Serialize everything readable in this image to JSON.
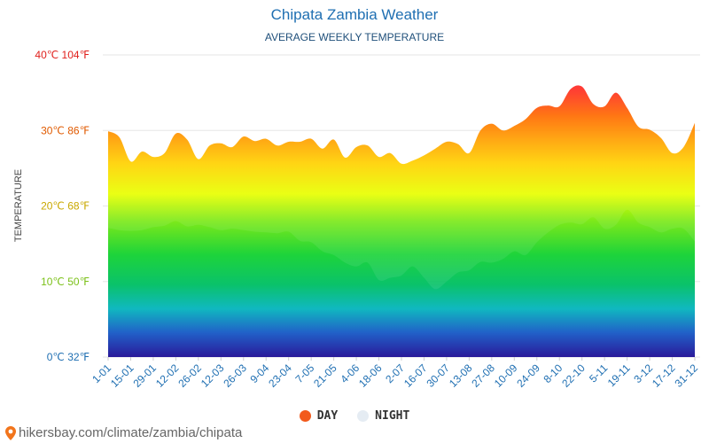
{
  "header": {
    "title": "Chipata Zambia Weather",
    "subtitle": "AVERAGE WEEKLY TEMPERATURE"
  },
  "legend": [
    {
      "label": "DAY",
      "color": "#f25a1c"
    },
    {
      "label": "NIGHT",
      "color": "#e5ecf3"
    }
  ],
  "credit": "hikersbay.com/climate/zambia/chipata",
  "chart_data": {
    "type": "area",
    "ylabel": "TEMPERATURE",
    "ylim": [
      0,
      40
    ],
    "yticks": [
      {
        "value": 0,
        "label": "0℃ 32℉",
        "color": "#1f6fb2"
      },
      {
        "value": 10,
        "label": "10℃ 50℉",
        "color": "#7cc11a"
      },
      {
        "value": 20,
        "label": "20℃ 68℉",
        "color": "#c9a800"
      },
      {
        "value": 30,
        "label": "30℃ 86℉",
        "color": "#e05a00"
      },
      {
        "value": 40,
        "label": "40℃ 104℉",
        "color": "#e0201c"
      }
    ],
    "x_labels": [
      "1-01",
      "15-01",
      "29-01",
      "12-02",
      "26-02",
      "12-03",
      "26-03",
      "9-04",
      "23-04",
      "7-05",
      "21-05",
      "4-06",
      "18-06",
      "2-07",
      "16-07",
      "30-07",
      "13-08",
      "27-08",
      "10-09",
      "24-09",
      "8-10",
      "22-10",
      "5-11",
      "19-11",
      "3-12",
      "17-12",
      "31-12"
    ],
    "grid": true,
    "series": [
      {
        "name": "DAY",
        "values": [
          29.9,
          29.1,
          25.9,
          27.2,
          26.5,
          27.0,
          29.6,
          28.8,
          26.2,
          28.0,
          28.3,
          27.8,
          29.2,
          28.6,
          28.9,
          28.0,
          28.5,
          28.5,
          28.9,
          27.6,
          28.8,
          26.4,
          27.8,
          28.0,
          26.5,
          27.0,
          25.6,
          26.0,
          26.7,
          27.6,
          28.5,
          28.2,
          27.0,
          30.0,
          30.9,
          30.0,
          30.6,
          31.5,
          33.0,
          33.3,
          33.2,
          35.5,
          35.8,
          33.5,
          33.2,
          35.0,
          33.0,
          30.5,
          30.1,
          29.0,
          27.0,
          27.8,
          31.0
        ]
      },
      {
        "name": "NIGHT",
        "values": [
          17.1,
          16.8,
          16.7,
          16.8,
          17.2,
          17.4,
          18.0,
          17.3,
          17.5,
          17.2,
          16.8,
          17.0,
          16.8,
          16.6,
          16.5,
          16.4,
          16.6,
          15.4,
          15.2,
          14.0,
          13.5,
          12.5,
          12.0,
          12.5,
          10.2,
          10.5,
          10.8,
          12.0,
          10.5,
          9.0,
          10.0,
          11.2,
          11.5,
          12.6,
          12.5,
          13.0,
          14.0,
          13.5,
          15.2,
          16.5,
          17.5,
          17.8,
          17.6,
          18.5,
          17.0,
          17.5,
          19.5,
          17.8,
          17.2,
          16.5,
          17.0,
          17.0,
          15.3
        ]
      }
    ]
  }
}
